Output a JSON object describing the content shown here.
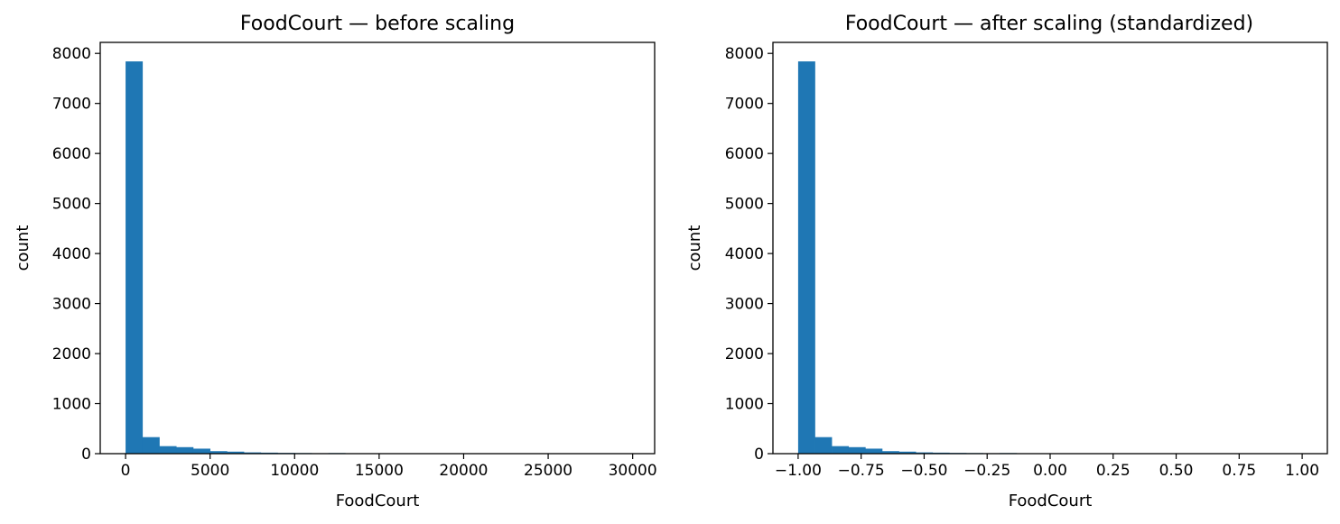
{
  "chart_data": [
    {
      "type": "bar",
      "title": "FoodCourt — before scaling",
      "xlabel": "FoodCourt",
      "ylabel": "count",
      "xlim": [
        -1500,
        31300
      ],
      "ylim": [
        0,
        8220
      ],
      "xticks": [
        0,
        5000,
        10000,
        15000,
        20000,
        25000,
        30000
      ],
      "xtick_labels": [
        "0",
        "5000",
        "10000",
        "15000",
        "20000",
        "25000",
        "30000"
      ],
      "yticks": [
        0,
        1000,
        2000,
        3000,
        4000,
        5000,
        6000,
        7000,
        8000
      ],
      "ytick_labels": [
        "0",
        "1000",
        "2000",
        "3000",
        "4000",
        "5000",
        "6000",
        "7000",
        "8000"
      ],
      "bin_start": 0,
      "bin_width": 1000,
      "counts": [
        7840,
        330,
        150,
        130,
        100,
        50,
        40,
        25,
        20,
        15,
        12,
        10,
        12,
        8,
        6,
        5,
        4,
        3,
        3,
        2,
        2,
        2,
        1,
        1,
        1,
        1,
        1,
        1,
        1,
        1
      ],
      "color": "#1f77b4",
      "grid": false,
      "legend": "none"
    },
    {
      "type": "bar",
      "title": "FoodCourt — after scaling (standardized)",
      "xlabel": "FoodCourt",
      "ylabel": "count",
      "xlim": [
        -1.1,
        1.1
      ],
      "ylim": [
        0,
        8220
      ],
      "xticks": [
        -1.0,
        -0.75,
        -0.5,
        -0.25,
        0.0,
        0.25,
        0.5,
        0.75,
        1.0
      ],
      "xtick_labels": [
        "−1.00",
        "−0.75",
        "−0.50",
        "−0.25",
        "0.00",
        "0.25",
        "0.50",
        "0.75",
        "1.00"
      ],
      "yticks": [
        0,
        1000,
        2000,
        3000,
        4000,
        5000,
        6000,
        7000,
        8000
      ],
      "ytick_labels": [
        "0",
        "1000",
        "2000",
        "3000",
        "4000",
        "5000",
        "6000",
        "7000",
        "8000"
      ],
      "bin_start": -1.0,
      "bin_width": 0.0667,
      "counts": [
        7840,
        330,
        150,
        130,
        100,
        50,
        40,
        25,
        20,
        15,
        12,
        10,
        12,
        8,
        6,
        5,
        4,
        3,
        3,
        2,
        2,
        2,
        1,
        1,
        1,
        1,
        1,
        1,
        1,
        1
      ],
      "color": "#1f77b4",
      "grid": false,
      "legend": "none"
    }
  ]
}
